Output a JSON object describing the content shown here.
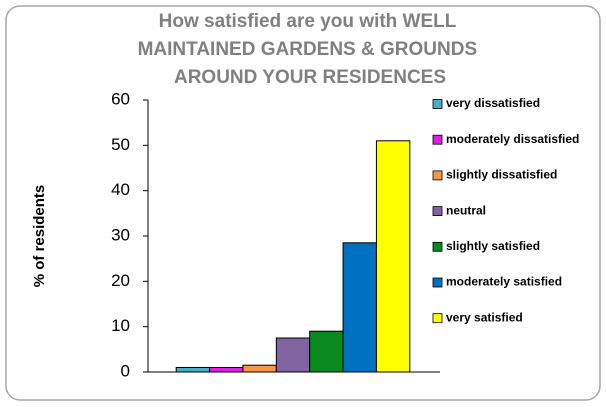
{
  "chart_data": {
    "type": "bar",
    "title": [
      "How satisfied are you with  WELL",
      "MAINTAINED GARDENS & GROUNDS",
      "AROUND YOUR RESIDENCES"
    ],
    "y_label": "% of residents",
    "categories": [
      null
    ],
    "series": [
      {
        "name": "very dissatisfied",
        "color": "#4bacc6",
        "values": [
          1
        ]
      },
      {
        "name": "moderately dissatisfied",
        "color": "#e020e0",
        "values": [
          1
        ]
      },
      {
        "name": "slightly dissatisfied",
        "color": "#f79646",
        "values": [
          1.5
        ]
      },
      {
        "name": "neutral",
        "color": "#8064a2",
        "values": [
          7.5
        ]
      },
      {
        "name": "slightly satisfied",
        "color": "#0a8a1e",
        "values": [
          9
        ]
      },
      {
        "name": "moderately satisfied",
        "color": "#0070c0",
        "values": [
          28.5
        ]
      },
      {
        "name": "very satisfied",
        "color": "#ffff00",
        "values": [
          51
        ]
      }
    ],
    "ylim": [
      0,
      60
    ],
    "yticks": [
      0,
      10,
      20,
      30,
      40,
      50,
      60
    ],
    "grid": false,
    "legend": "right"
  }
}
